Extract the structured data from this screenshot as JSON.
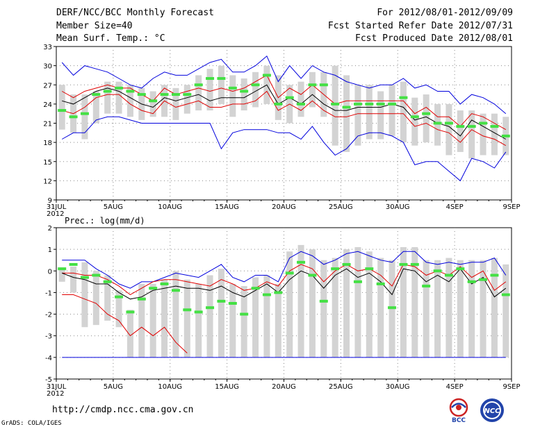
{
  "header": {
    "title": "DERF/NCC/BCC Monthly Forecast",
    "member_size": "Member Size=40",
    "variable": "Mean Surf. Temp.: °C",
    "period": "For 2012/08/01-2012/09/09",
    "start_date": "Fcst Started Refer Date 2012/07/31",
    "produced_date": "Fcst Produced Date 2012/08/01"
  },
  "footer": {
    "url": "http://cmdp.ncc.cma.gov.cn",
    "grads": "GrADS: COLA/IGES",
    "logo_left_text": "BCC",
    "logo_right_text": "NCC"
  },
  "colors": {
    "box": "#d3d3d3",
    "ens_mean": "#000000",
    "spread": "#e00000",
    "extreme": "#0000dd",
    "obs": "#44e044"
  },
  "chart_data": [
    {
      "type": "box-line",
      "title": "Mean Surf. Temp.: °C",
      "xlabel": "",
      "ylabel": "",
      "ylim": [
        9,
        33
      ],
      "yticks": [
        9,
        12,
        15,
        18,
        21,
        24,
        27,
        30,
        33
      ],
      "grid": true,
      "x_days": [
        0,
        1,
        2,
        3,
        4,
        5,
        6,
        7,
        8,
        9,
        10,
        11,
        12,
        13,
        14,
        15,
        16,
        17,
        18,
        19,
        20,
        21,
        22,
        23,
        24,
        25,
        26,
        27,
        28,
        29,
        30,
        31,
        32,
        33,
        34,
        35,
        36,
        37,
        38,
        39
      ],
      "x_ticks": [
        {
          "day": 0,
          "label": "31JUL",
          "sub": "2012"
        },
        {
          "day": 5,
          "label": "5AUG"
        },
        {
          "day": 10,
          "label": "10AUG"
        },
        {
          "day": 15,
          "label": "15AUG"
        },
        {
          "day": 20,
          "label": "20AUG"
        },
        {
          "day": 25,
          "label": "25AUG"
        },
        {
          "day": 30,
          "label": "30AUG"
        },
        {
          "day": 35,
          "label": "4SEP"
        },
        {
          "day": 40,
          "label": "9SEP"
        }
      ],
      "box_low": [
        20,
        19.5,
        18.5,
        21,
        22.5,
        22.5,
        22,
        21.5,
        22,
        22,
        21.5,
        22.5,
        23,
        23,
        24,
        22,
        23,
        23.5,
        24,
        21.5,
        21,
        22,
        23.5,
        22,
        17.5,
        16.5,
        17.5,
        18.5,
        18.5,
        19,
        18,
        17.5,
        18,
        17.5,
        16,
        16.5,
        15.5,
        16,
        16,
        16
      ],
      "box_high": [
        27,
        25.5,
        25.5,
        26,
        27.5,
        27.5,
        27,
        26.5,
        26,
        27,
        26.5,
        27,
        28.5,
        29.5,
        30,
        28.5,
        28,
        29,
        30,
        28.5,
        27,
        27.5,
        29,
        29,
        30,
        28.5,
        27,
        27,
        26,
        27,
        27.5,
        25,
        25.5,
        24,
        24,
        23,
        23,
        22.5,
        22.5,
        22
      ],
      "ens_mean": [
        24.5,
        24,
        25,
        26,
        26.5,
        26,
        25,
        24,
        23.5,
        25,
        24.5,
        25,
        25.5,
        24.5,
        25,
        25,
        25,
        26,
        27,
        24,
        25,
        24,
        25.5,
        24,
        23,
        23,
        23.5,
        23.5,
        23.5,
        24,
        23.5,
        21.5,
        22,
        21,
        20.5,
        19,
        21.5,
        20.5,
        19.5,
        18.5
      ],
      "upper": [
        26,
        25,
        26,
        26.5,
        27,
        26.5,
        26.5,
        25.5,
        24.5,
        26.5,
        25.5,
        26,
        26.5,
        26,
        26.5,
        26,
        26.5,
        27.5,
        28.5,
        25,
        26.5,
        25.5,
        27,
        25.5,
        24,
        24.5,
        24.5,
        24.5,
        24.5,
        24.5,
        24.5,
        22.5,
        23.5,
        22,
        22,
        20.5,
        22.5,
        22,
        21,
        20
      ],
      "lower": [
        23,
        22.5,
        23.5,
        25,
        25.5,
        25.5,
        24,
        23,
        22.5,
        24.5,
        23.5,
        24,
        24.5,
        23.5,
        23.5,
        24,
        24,
        24.5,
        26,
        23,
        24,
        23,
        24.5,
        23,
        22,
        22,
        22.5,
        22.5,
        22.5,
        22.5,
        22.5,
        20.5,
        21,
        20,
        19.5,
        18,
        20,
        19,
        18.5,
        17.5
      ],
      "max": [
        30.5,
        28.5,
        30,
        29.5,
        29,
        28,
        27,
        26.5,
        28,
        29,
        28.5,
        28.5,
        29.5,
        30.5,
        31,
        29,
        29,
        30,
        31.5,
        27.5,
        30,
        28,
        30,
        29,
        28.5,
        27.5,
        27,
        26.5,
        27,
        27,
        28,
        26.5,
        27,
        26,
        26,
        24,
        25.5,
        25,
        24,
        22.5
      ],
      "min": [
        18.5,
        19.5,
        19.5,
        21.5,
        22,
        22,
        21.5,
        21,
        21,
        21,
        21,
        21,
        21,
        21,
        17,
        19.5,
        20,
        20,
        20,
        19.5,
        19.5,
        18.5,
        20.5,
        18,
        16,
        17,
        19,
        19.5,
        19.5,
        19,
        18,
        14.5,
        15,
        15,
        13.5,
        12,
        15.5,
        15,
        14,
        16.5
      ],
      "obs": [
        23,
        22,
        22.5,
        25.5,
        26,
        26.5,
        26,
        25.5,
        24.5,
        25.5,
        25.5,
        25.5,
        27,
        28,
        28,
        26.5,
        26,
        27,
        28.5,
        24,
        25,
        24,
        27,
        27,
        24,
        23.5,
        24,
        24,
        24,
        24,
        25,
        22,
        22.5,
        21,
        21,
        20.5,
        20.5,
        21,
        20.5,
        19
      ]
    },
    {
      "type": "box-line",
      "title": "Prec.: log(mm/d)",
      "xlabel": "",
      "ylabel": "",
      "ylim": [
        -5,
        2
      ],
      "yticks": [
        -5,
        -4,
        -3,
        -2,
        -1,
        0,
        1,
        2
      ],
      "grid": true,
      "x_days": [
        0,
        1,
        2,
        3,
        4,
        5,
        6,
        7,
        8,
        9,
        10,
        11,
        12,
        13,
        14,
        15,
        16,
        17,
        18,
        19,
        20,
        21,
        22,
        23,
        24,
        25,
        26,
        27,
        28,
        29,
        30,
        31,
        32,
        33,
        34,
        35,
        36,
        37,
        38,
        39
      ],
      "x_ticks": [
        {
          "day": 0,
          "label": "31JUL",
          "sub": "2012"
        },
        {
          "day": 5,
          "label": "5AUG"
        },
        {
          "day": 10,
          "label": "10AUG"
        },
        {
          "day": 15,
          "label": "15AUG"
        },
        {
          "day": 20,
          "label": "20AUG"
        },
        {
          "day": 25,
          "label": "25AUG"
        },
        {
          "day": 30,
          "label": "30AUG"
        },
        {
          "day": 35,
          "label": "4SEP"
        },
        {
          "day": 40,
          "label": "9SEP"
        }
      ],
      "box_low": [
        -0.5,
        -1,
        -2.6,
        -2.5,
        -2.3,
        -2.6,
        -4,
        -4,
        -4,
        -4,
        -4,
        -4,
        -4,
        -4,
        -4,
        -4,
        -4,
        -4,
        -4,
        -4,
        -4,
        -4,
        -4,
        -4,
        -4,
        -4,
        -4,
        -4,
        -4,
        -4,
        -4,
        -4,
        -4,
        -4,
        -4,
        -4,
        -4,
        -4,
        -4,
        -4
      ],
      "box_high": [
        0.1,
        0.2,
        0.4,
        0,
        -0.2,
        -0.9,
        -1.8,
        -0.6,
        -0.6,
        -0.4,
        0,
        -0.4,
        -0.6,
        -0.2,
        0.1,
        -0.6,
        -0.7,
        -0.3,
        -0.2,
        -0.6,
        0.9,
        1.2,
        1,
        0.5,
        0.6,
        1,
        1.1,
        0.9,
        0.6,
        0.5,
        1.1,
        1.1,
        0.5,
        0.5,
        0.6,
        0.5,
        0.5,
        0.5,
        0.6,
        0.3
      ],
      "ens_mean": [
        -0.1,
        -0.3,
        -0.4,
        -0.6,
        -0.6,
        -1,
        -1.3,
        -1.2,
        -0.9,
        -0.8,
        -0.7,
        -0.8,
        -0.8,
        -0.9,
        -0.7,
        -1,
        -1.2,
        -0.9,
        -0.6,
        -1,
        -0.4,
        0,
        -0.2,
        -0.8,
        -0.2,
        0.1,
        -0.3,
        -0.1,
        -0.5,
        -1.1,
        0.1,
        0,
        -0.5,
        -0.2,
        -0.5,
        0.1,
        -0.6,
        -0.3,
        -1.2,
        -0.8
      ],
      "upper": [
        -0.1,
        -0.1,
        -0.2,
        -0.2,
        -0.4,
        -0.7,
        -1.1,
        -0.8,
        -0.5,
        -0.4,
        -0.4,
        -0.5,
        -0.6,
        -0.7,
        -0.4,
        -0.6,
        -0.9,
        -0.8,
        -0.5,
        -0.7,
        0,
        0.3,
        0.1,
        -0.5,
        0,
        0.3,
        0,
        0.1,
        -0.2,
        -0.7,
        0.3,
        0.2,
        -0.2,
        0,
        -0.2,
        0.2,
        -0.3,
        0,
        -0.9,
        -0.5
      ],
      "lower": [
        -1.1,
        -1.1,
        -1.3,
        -1.5,
        -2,
        -2.3,
        -3,
        -2.6,
        -3,
        -2.6,
        -3.3,
        -3.8,
        -4,
        -4,
        -4,
        -4,
        -4,
        -4,
        -4,
        -4,
        -4,
        -4,
        -4,
        -4,
        -4,
        -4,
        -4,
        -4,
        -4,
        -4,
        -4,
        -4,
        -4,
        -4,
        -4,
        -4,
        -4,
        -4,
        -4,
        -4
      ],
      "max": [
        0.5,
        0.5,
        0.5,
        0.1,
        -0.2,
        -0.6,
        -0.8,
        -0.5,
        -0.5,
        -0.3,
        -0.1,
        -0.2,
        -0.3,
        0,
        0.3,
        -0.3,
        -0.5,
        -0.2,
        -0.2,
        -0.5,
        0.6,
        0.9,
        0.7,
        0.3,
        0.5,
        0.8,
        0.9,
        0.7,
        0.5,
        0.4,
        0.9,
        0.9,
        0.4,
        0.3,
        0.4,
        0.3,
        0.4,
        0.4,
        0.6,
        -0.2
      ],
      "min": [
        -4,
        -4,
        -4,
        -4,
        -4,
        -4,
        -4,
        -4,
        -4,
        -4,
        -4,
        -4,
        -4,
        -4,
        -4,
        -4,
        -4,
        -4,
        -4,
        -4,
        -4,
        -4,
        -4,
        -4,
        -4,
        -4,
        -4,
        -4,
        -4,
        -4,
        -4,
        -4,
        -4,
        -4,
        -4,
        -4,
        -4,
        -4,
        -4,
        -4
      ],
      "obs": [
        0.1,
        0.3,
        -0.3,
        -0.2,
        -0.5,
        -1.2,
        -1.9,
        -1.3,
        -0.8,
        -0.6,
        -0.9,
        -1.8,
        -1.9,
        -1.7,
        -1.4,
        -1.5,
        -2,
        -0.8,
        -1.1,
        -1,
        -0.1,
        0.4,
        -0.2,
        -1.4,
        0.1,
        0.3,
        -0.5,
        0.1,
        -0.6,
        -1.7,
        0.3,
        0.3,
        -0.7,
        0,
        -0.2,
        0.1,
        -0.5,
        -0.4,
        -0.2,
        -1.1
      ],
      "lower_cutoff_day": 11
    }
  ]
}
